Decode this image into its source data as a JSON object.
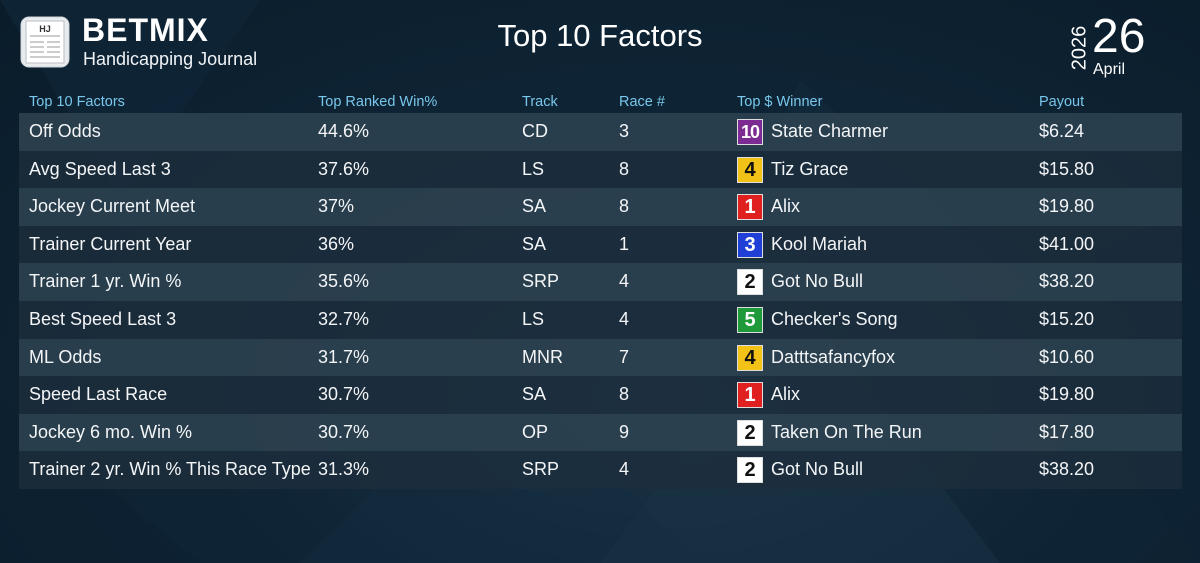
{
  "header": {
    "brand": "BETMIX",
    "subtitle": "Handicapping Journal",
    "logo_initials": "HJ",
    "title": "Top 10 Factors",
    "date": {
      "year": "2026",
      "day": "26",
      "month": "April"
    }
  },
  "table": {
    "columns": [
      "Top 10 Factors",
      "Top Ranked Win%",
      "Track",
      "Race #",
      "Top $ Winner",
      "Payout"
    ],
    "rows": [
      {
        "factor": "Off Odds",
        "win_pct": "44.6%",
        "track": "CD",
        "race": "3",
        "post": "10",
        "horse": "State Charmer",
        "payout": "$6.24"
      },
      {
        "factor": "Avg Speed Last 3",
        "win_pct": "37.6%",
        "track": "LS",
        "race": "8",
        "post": "4",
        "horse": "Tiz Grace",
        "payout": "$15.80"
      },
      {
        "factor": "Jockey Current Meet",
        "win_pct": "37%",
        "track": "SA",
        "race": "8",
        "post": "1",
        "horse": "Alix",
        "payout": "$19.80"
      },
      {
        "factor": "Trainer Current Year",
        "win_pct": "36%",
        "track": "SA",
        "race": "1",
        "post": "3",
        "horse": "Kool Mariah",
        "payout": "$41.00"
      },
      {
        "factor": "Trainer 1 yr. Win %",
        "win_pct": "35.6%",
        "track": "SRP",
        "race": "4",
        "post": "2",
        "horse": "Got No Bull",
        "payout": "$38.20"
      },
      {
        "factor": "Best Speed Last 3",
        "win_pct": "32.7%",
        "track": "LS",
        "race": "4",
        "post": "5",
        "horse": "Checker's Song",
        "payout": "$15.20"
      },
      {
        "factor": "ML Odds",
        "win_pct": "31.7%",
        "track": "MNR",
        "race": "7",
        "post": "4",
        "horse": "Datttsafancyfox",
        "payout": "$10.60"
      },
      {
        "factor": "Speed Last Race",
        "win_pct": "30.7%",
        "track": "SA",
        "race": "8",
        "post": "1",
        "horse": "Alix",
        "payout": "$19.80"
      },
      {
        "factor": "Jockey 6 mo. Win %",
        "win_pct": "30.7%",
        "track": "OP",
        "race": "9",
        "post": "2",
        "horse": "Taken On The Run",
        "payout": "$17.80"
      },
      {
        "factor": "Trainer 2 yr. Win % This Race Type",
        "win_pct": "31.3%",
        "track": "SRP",
        "race": "4",
        "post": "2",
        "horse": "Got No Bull",
        "payout": "$38.20"
      }
    ]
  },
  "post_colors": {
    "1": {
      "bg": "#e0201f",
      "fg": "#ffffff"
    },
    "2": {
      "bg": "#ffffff",
      "fg": "#111111"
    },
    "3": {
      "bg": "#1f3fd6",
      "fg": "#ffffff"
    },
    "4": {
      "bg": "#f2c316",
      "fg": "#111111"
    },
    "5": {
      "bg": "#1f9a3a",
      "fg": "#ffffff"
    },
    "10": {
      "bg": "#7b2b92",
      "fg": "#ffffff"
    }
  },
  "theme": {
    "header_text": "#79c7ec",
    "row_light": "#2e4250",
    "row_dark": "#1e2e3c"
  }
}
